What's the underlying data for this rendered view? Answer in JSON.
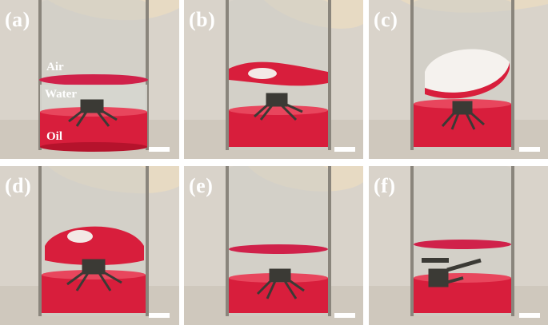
{
  "panels": [
    {
      "label": "(a)",
      "annotations": {
        "air": "Air",
        "water": "Water",
        "oil": "Oil"
      }
    },
    {
      "label": "(b)"
    },
    {
      "label": "(c)"
    },
    {
      "label": "(d)"
    },
    {
      "label": "(e)"
    },
    {
      "label": "(f)"
    }
  ],
  "colors": {
    "background": "#d8d2c8",
    "oil": "#d81e3c",
    "oil_dark": "#b5132c",
    "water": "#c9c9c2",
    "glass_edge": "#6f6a62",
    "finger": "#e6d9c2",
    "robot": "#3b3a35",
    "label": "#ffffff"
  }
}
